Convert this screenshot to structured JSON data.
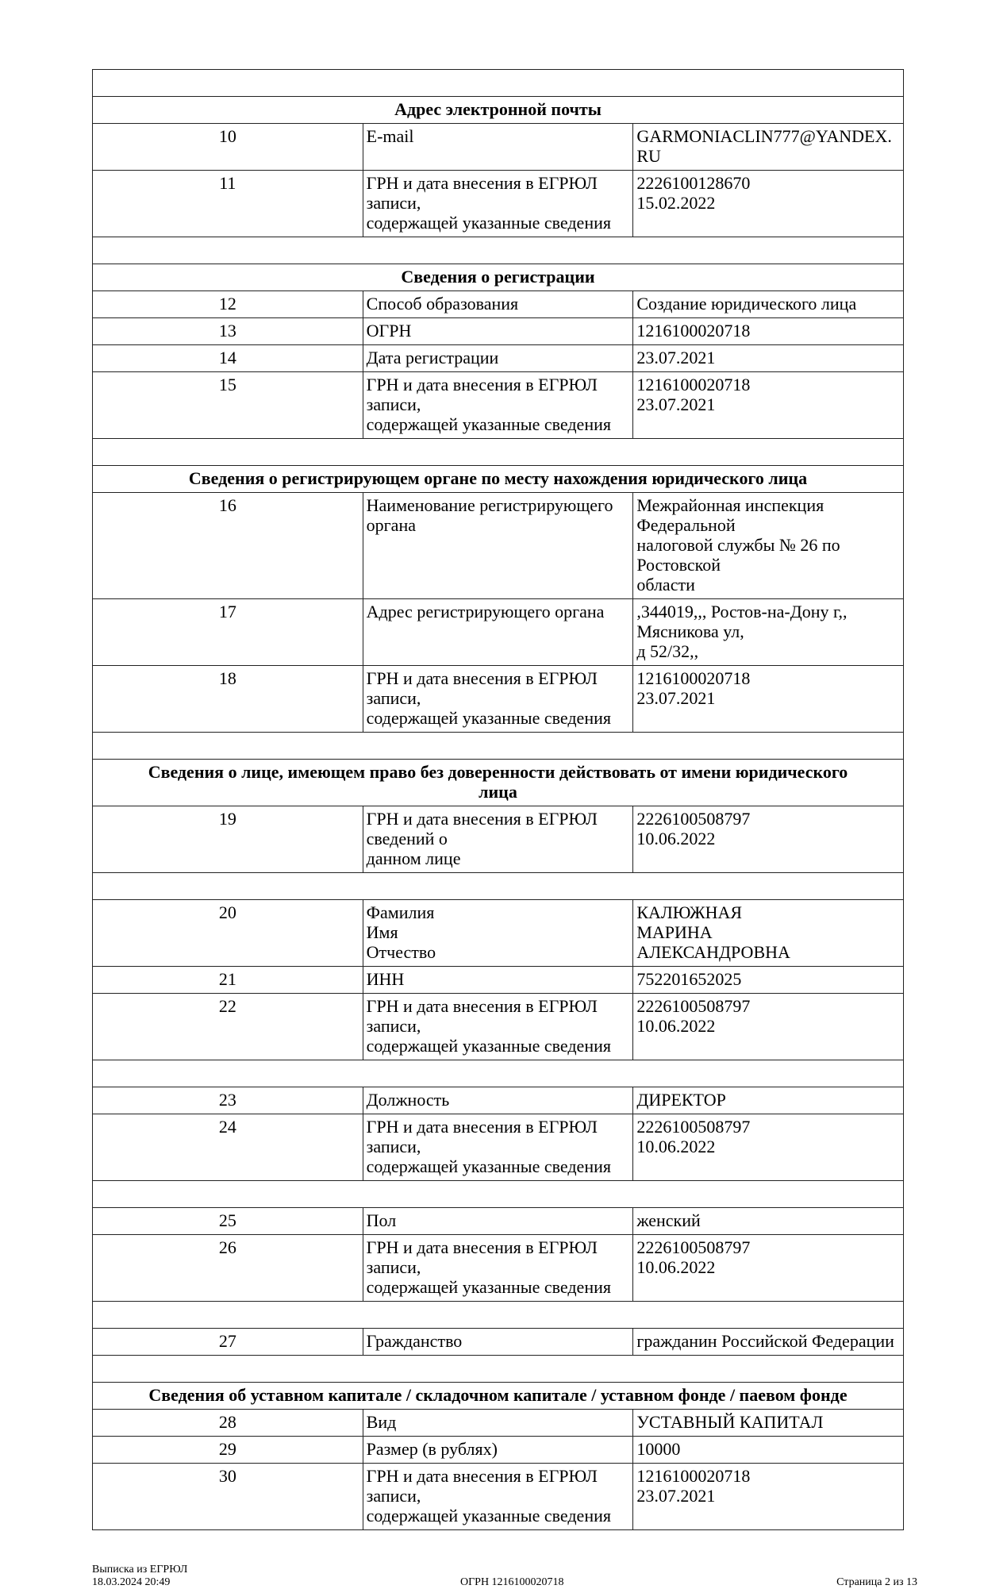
{
  "rows": [
    {
      "type": "empty"
    },
    {
      "type": "section",
      "title": "Адрес электронной почты"
    },
    {
      "type": "row",
      "num": "10",
      "label": "E-mail",
      "value": "GARMONIACLIN777@YANDEX.RU"
    },
    {
      "type": "row",
      "num": "11",
      "label": "ГРН и дата внесения в ЕГРЮЛ записи,\nсодержащей указанные сведения",
      "value": "2226100128670\n15.02.2022"
    },
    {
      "type": "empty"
    },
    {
      "type": "section",
      "title": "Сведения о регистрации"
    },
    {
      "type": "row",
      "num": "12",
      "label": "Способ образования",
      "value": "Создание юридического лица"
    },
    {
      "type": "row",
      "num": "13",
      "label": "ОГРН",
      "value": "1216100020718"
    },
    {
      "type": "row",
      "num": "14",
      "label": "Дата регистрации",
      "value": "23.07.2021"
    },
    {
      "type": "row",
      "num": "15",
      "label": "ГРН и дата внесения в ЕГРЮЛ записи,\nсодержащей указанные сведения",
      "value": "1216100020718\n23.07.2021"
    },
    {
      "type": "empty"
    },
    {
      "type": "section",
      "title": "Сведения о регистрирующем органе по месту нахождения юридического лица"
    },
    {
      "type": "row",
      "num": "16",
      "label": "Наименование регистрирующего органа",
      "value": "Межрайонная инспекция Федеральной\nналоговой службы № 26 по Ростовской\nобласти"
    },
    {
      "type": "row",
      "num": "17",
      "label": "Адрес регистрирующего органа",
      "value": ",344019,,, Ростов-на-Дону г,, Мясникова ул,\nд 52/32,,"
    },
    {
      "type": "row",
      "num": "18",
      "label": "ГРН и дата внесения в ЕГРЮЛ записи,\nсодержащей указанные сведения",
      "value": "1216100020718\n23.07.2021"
    },
    {
      "type": "empty"
    },
    {
      "type": "section",
      "title": "Сведения о лице, имеющем право без доверенности действовать от имени юридического\nлица"
    },
    {
      "type": "row",
      "num": "19",
      "label": "ГРН и дата внесения в ЕГРЮЛ сведений о\nданном лице",
      "value": "2226100508797\n10.06.2022"
    },
    {
      "type": "empty"
    },
    {
      "type": "row",
      "num": "20",
      "label": "Фамилия\nИмя\nОтчество",
      "value": "КАЛЮЖНАЯ\nМАРИНА\nАЛЕКСАНДРОВНА"
    },
    {
      "type": "row",
      "num": "21",
      "label": "ИНН",
      "value": "752201652025"
    },
    {
      "type": "row",
      "num": "22",
      "label": "ГРН и дата внесения в ЕГРЮЛ записи,\nсодержащей указанные сведения",
      "value": "2226100508797\n10.06.2022"
    },
    {
      "type": "empty"
    },
    {
      "type": "row",
      "num": "23",
      "label": "Должность",
      "value": "ДИРЕКТОР"
    },
    {
      "type": "row",
      "num": "24",
      "label": "ГРН и дата внесения в ЕГРЮЛ записи,\nсодержащей указанные сведения",
      "value": "2226100508797\n10.06.2022"
    },
    {
      "type": "empty"
    },
    {
      "type": "row",
      "num": "25",
      "label": "Пол",
      "value": "женский"
    },
    {
      "type": "row",
      "num": "26",
      "label": "ГРН и дата внесения в ЕГРЮЛ записи,\nсодержащей указанные сведения",
      "value": "2226100508797\n10.06.2022"
    },
    {
      "type": "empty"
    },
    {
      "type": "row",
      "num": "27",
      "label": "Гражданство",
      "value": "гражданин Российской Федерации"
    },
    {
      "type": "empty"
    },
    {
      "type": "section",
      "title": "Сведения об уставном капитале / складочном капитале / уставном фонде / паевом фонде"
    },
    {
      "type": "row",
      "num": "28",
      "label": "Вид",
      "value": "УСТАВНЫЙ КАПИТАЛ"
    },
    {
      "type": "row",
      "num": "29",
      "label": "Размер (в рублях)",
      "value": "10000"
    },
    {
      "type": "row",
      "num": "30",
      "label": "ГРН и дата внесения в ЕГРЮЛ записи,\nсодержащей указанные сведения",
      "value": "1216100020718\n23.07.2021"
    }
  ],
  "footer": {
    "doc_name": "Выписка из ЕГРЮЛ",
    "datetime": "18.03.2024 20:49",
    "ogrn": "ОГРН 1216100020718",
    "page": "Страница 2 из 13"
  }
}
